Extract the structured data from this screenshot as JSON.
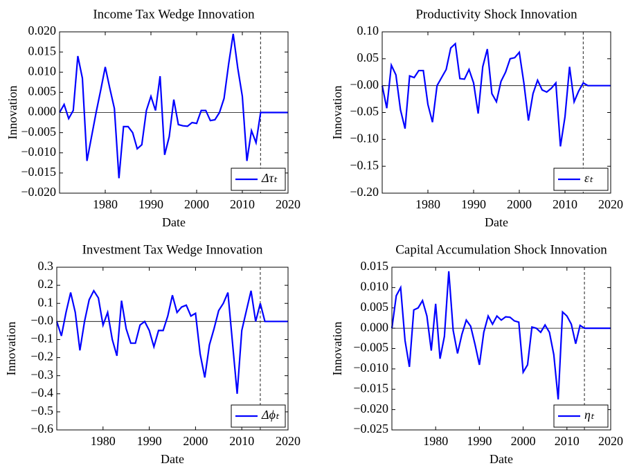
{
  "chart_data": [
    {
      "type": "line",
      "title": "Income Tax Wedge Innovation",
      "xlabel": "Date",
      "ylabel": "Innovation",
      "x": [
        1970,
        1971,
        1972,
        1973,
        1974,
        1975,
        1976,
        1977,
        1978,
        1979,
        1980,
        1981,
        1982,
        1983,
        1984,
        1985,
        1986,
        1987,
        1988,
        1989,
        1990,
        1991,
        1992,
        1993,
        1994,
        1995,
        1996,
        1997,
        1998,
        1999,
        2000,
        2001,
        2002,
        2003,
        2004,
        2005,
        2006,
        2007,
        2008,
        2009,
        2010,
        2011,
        2012,
        2013,
        2014,
        2015,
        2016,
        2017,
        2018,
        2019,
        2020
      ],
      "series": [
        {
          "name": "Δτₜ",
          "color": "#0000ff",
          "values": [
            0,
            0.002,
            -0.0015,
            0.0005,
            0.014,
            0.0085,
            -0.012,
            -0.006,
            0,
            0.0055,
            0.0113,
            0.006,
            0.001,
            -0.0163,
            -0.0035,
            -0.0035,
            -0.005,
            -0.009,
            -0.008,
            0.0005,
            0.004,
            0.0005,
            0.009,
            -0.0105,
            -0.006,
            0.0032,
            -0.003,
            -0.0033,
            -0.0034,
            -0.0025,
            -0.0027,
            0.0005,
            0.0005,
            -0.002,
            -0.0018,
            0,
            0.0035,
            0.012,
            0.0195,
            0.011,
            0.004,
            -0.012,
            -0.0045,
            -0.0075,
            0,
            0,
            0,
            0,
            0,
            0,
            0
          ]
        }
      ],
      "vline": 2014,
      "legend": "lower right",
      "xlim": [
        1970,
        2020
      ],
      "xticks": [
        1980,
        1990,
        2000,
        2010,
        2020
      ],
      "ylim": [
        -0.02,
        0.02
      ],
      "yticks": [
        {
          "value": -0.02,
          "label": "−0.020"
        },
        {
          "value": -0.015,
          "label": "−0.015"
        },
        {
          "value": -0.01,
          "label": "−0.010"
        },
        {
          "value": -0.005,
          "label": "−0.005"
        },
        {
          "value": 0,
          "label": "0.000"
        },
        {
          "value": 0.005,
          "label": "0.005"
        },
        {
          "value": 0.01,
          "label": "0.010"
        },
        {
          "value": 0.015,
          "label": "0.015"
        },
        {
          "value": 0.02,
          "label": "0.020"
        }
      ]
    },
    {
      "type": "line",
      "title": "Productivity Shock Innovation",
      "xlabel": "Date",
      "ylabel": "Innovation",
      "x": [
        1970,
        1971,
        1972,
        1973,
        1974,
        1975,
        1976,
        1977,
        1978,
        1979,
        1980,
        1981,
        1982,
        1983,
        1984,
        1985,
        1986,
        1987,
        1988,
        1989,
        1990,
        1991,
        1992,
        1993,
        1994,
        1995,
        1996,
        1997,
        1998,
        1999,
        2000,
        2001,
        2002,
        2003,
        2004,
        2005,
        2006,
        2007,
        2008,
        2009,
        2010,
        2011,
        2012,
        2013,
        2014,
        2015,
        2016,
        2017,
        2018,
        2019,
        2020
      ],
      "series": [
        {
          "name": "εₜ",
          "color": "#0000ff",
          "values": [
            0,
            -0.042,
            0.038,
            0.02,
            -0.045,
            -0.08,
            0.018,
            0.015,
            0.028,
            0.028,
            -0.035,
            -0.068,
            0,
            0.015,
            0.03,
            0.07,
            0.078,
            0.013,
            0.012,
            0.03,
            0.005,
            -0.052,
            0.035,
            0.068,
            -0.015,
            -0.03,
            0.008,
            0.025,
            0.05,
            0.052,
            0.062,
            0.005,
            -0.065,
            -0.015,
            0.01,
            -0.008,
            -0.012,
            -0.005,
            0.005,
            -0.113,
            -0.058,
            0.035,
            -0.03,
            -0.01,
            0.005,
            0,
            0,
            0,
            0,
            0,
            0
          ]
        }
      ],
      "vline": 2014,
      "legend": "lower right",
      "xlim": [
        1970,
        2020
      ],
      "xticks": [
        1980,
        1990,
        2000,
        2010,
        2020
      ],
      "ylim": [
        -0.2,
        0.1
      ],
      "yticks": [
        {
          "value": -0.2,
          "label": "−0.20"
        },
        {
          "value": -0.15,
          "label": "−0.15"
        },
        {
          "value": -0.1,
          "label": "−0.10"
        },
        {
          "value": -0.05,
          "label": "−0.05"
        },
        {
          "value": 0,
          "label": "−0.00"
        },
        {
          "value": 0.05,
          "label": "0.05"
        },
        {
          "value": 0.1,
          "label": "0.10"
        }
      ]
    },
    {
      "type": "line",
      "title": "Investment Tax Wedge Innovation",
      "xlabel": "Date",
      "ylabel": "Innovation",
      "x": [
        1970,
        1971,
        1972,
        1973,
        1974,
        1975,
        1976,
        1977,
        1978,
        1979,
        1980,
        1981,
        1982,
        1983,
        1984,
        1985,
        1986,
        1987,
        1988,
        1989,
        1990,
        1991,
        1992,
        1993,
        1994,
        1995,
        1996,
        1997,
        1998,
        1999,
        2000,
        2001,
        2002,
        2003,
        2004,
        2005,
        2006,
        2007,
        2008,
        2009,
        2010,
        2011,
        2012,
        2013,
        2014,
        2015,
        2016,
        2017,
        2018,
        2019,
        2020
      ],
      "series": [
        {
          "name": "Δϕₜ",
          "color": "#0000ff",
          "values": [
            0,
            -0.08,
            0.05,
            0.16,
            0.05,
            -0.16,
            0,
            0.12,
            0.17,
            0.13,
            -0.02,
            0.05,
            -0.1,
            -0.19,
            0.115,
            -0.04,
            -0.12,
            -0.12,
            -0.02,
            0,
            -0.05,
            -0.14,
            -0.05,
            -0.05,
            0.03,
            0.145,
            0.05,
            0.08,
            0.09,
            0.03,
            0.045,
            -0.18,
            -0.31,
            -0.13,
            -0.04,
            0.06,
            0.1,
            0.16,
            -0.12,
            -0.4,
            -0.05,
            0.06,
            0.17,
            0,
            0.1,
            0,
            0,
            0,
            0,
            0,
            0
          ]
        }
      ],
      "vline": 2014,
      "legend": "lower right",
      "xlim": [
        1970,
        2020
      ],
      "xticks": [
        1980,
        1990,
        2000,
        2010,
        2020
      ],
      "ylim": [
        -0.6,
        0.3
      ],
      "yticks": [
        {
          "value": -0.6,
          "label": "−0.6"
        },
        {
          "value": -0.5,
          "label": "−0.5"
        },
        {
          "value": -0.4,
          "label": "−0.4"
        },
        {
          "value": -0.3,
          "label": "−0.3"
        },
        {
          "value": -0.2,
          "label": "−0.2"
        },
        {
          "value": -0.1,
          "label": "−0.1"
        },
        {
          "value": 0,
          "label": "−0.0"
        },
        {
          "value": 0.1,
          "label": "0.1"
        },
        {
          "value": 0.2,
          "label": "0.2"
        },
        {
          "value": 0.3,
          "label": "0.3"
        }
      ]
    },
    {
      "type": "line",
      "title": "Capital Accumulation Shock Innovation",
      "xlabel": "Date",
      "ylabel": "Innovation",
      "x": [
        1970,
        1971,
        1972,
        1973,
        1974,
        1975,
        1976,
        1977,
        1978,
        1979,
        1980,
        1981,
        1982,
        1983,
        1984,
        1985,
        1986,
        1987,
        1988,
        1989,
        1990,
        1991,
        1992,
        1993,
        1994,
        1995,
        1996,
        1997,
        1998,
        1999,
        2000,
        2001,
        2002,
        2003,
        2004,
        2005,
        2006,
        2007,
        2008,
        2009,
        2010,
        2011,
        2012,
        2013,
        2014,
        2015,
        2016,
        2017,
        2018,
        2019,
        2020
      ],
      "series": [
        {
          "name": "ηₜ",
          "color": "#0000ff",
          "values": [
            0,
            0.008,
            0.01,
            -0.003,
            -0.0095,
            0.0045,
            0.005,
            0.0068,
            0.003,
            -0.0055,
            0.006,
            -0.0075,
            -0.002,
            0.014,
            -0.0005,
            -0.0062,
            -0.0015,
            0.002,
            0.0005,
            -0.004,
            -0.009,
            -0.001,
            0.003,
            0.001,
            0.003,
            0.002,
            0.0028,
            0.0027,
            0.0018,
            0.0015,
            -0.0108,
            -0.009,
            0.0003,
            0,
            -0.001,
            0.0008,
            -0.001,
            -0.0065,
            -0.0175,
            0.004,
            0.003,
            0.001,
            -0.0038,
            0.0007,
            0,
            0,
            0,
            0,
            0,
            0,
            0
          ]
        }
      ],
      "vline": 2014,
      "legend": "lower right",
      "xlim": [
        1970,
        2020
      ],
      "xticks": [
        1980,
        1990,
        2000,
        2010,
        2020
      ],
      "ylim": [
        -0.025,
        0.015
      ],
      "yticks": [
        {
          "value": -0.025,
          "label": "−0.025"
        },
        {
          "value": -0.02,
          "label": "−0.020"
        },
        {
          "value": -0.015,
          "label": "−0.015"
        },
        {
          "value": -0.01,
          "label": "−0.010"
        },
        {
          "value": -0.005,
          "label": "−0.005"
        },
        {
          "value": 0,
          "label": "0.000"
        },
        {
          "value": 0.005,
          "label": "0.005"
        },
        {
          "value": 0.01,
          "label": "0.010"
        },
        {
          "value": 0.015,
          "label": "0.015"
        }
      ]
    }
  ]
}
